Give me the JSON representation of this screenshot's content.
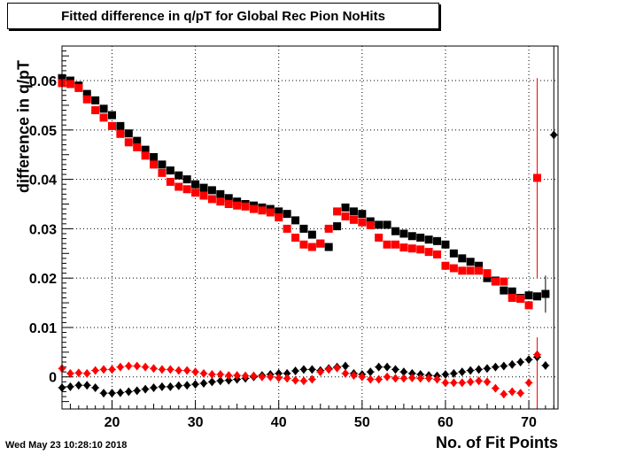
{
  "chart_data": {
    "type": "scatter",
    "title": "Fitted difference in q/pT for Global Rec Pion NoHits",
    "xlabel": "No. of Fit Points",
    "ylabel": "difference in q/pT",
    "xlim": [
      14,
      73.5
    ],
    "ylim": [
      -0.0065,
      0.067
    ],
    "xticks": [
      20,
      30,
      40,
      50,
      60,
      70
    ],
    "yticks": [
      0,
      0.01,
      0.02,
      0.03,
      0.04,
      0.05,
      0.06
    ],
    "ytick_labels": [
      "0",
      "0.01",
      "0.02",
      "0.03",
      "0.04",
      "0.05",
      "0.06"
    ],
    "grid": true,
    "series": [
      {
        "marker": "square",
        "color": "#000000",
        "x": [
          14,
          15,
          16,
          17,
          18,
          19,
          20,
          21,
          22,
          23,
          24,
          25,
          26,
          27,
          28,
          29,
          30,
          31,
          32,
          33,
          34,
          35,
          36,
          37,
          38,
          39,
          40,
          41,
          42,
          43,
          44,
          45,
          46,
          47,
          48,
          49,
          50,
          51,
          52,
          53,
          54,
          55,
          56,
          57,
          58,
          59,
          60,
          61,
          62,
          63,
          64,
          65,
          66,
          67,
          68,
          69,
          70,
          71,
          72
        ],
        "y": [
          0.0605,
          0.06,
          0.059,
          0.0573,
          0.056,
          0.0543,
          0.053,
          0.0508,
          0.0493,
          0.0478,
          0.046,
          0.0445,
          0.043,
          0.0418,
          0.0408,
          0.04,
          0.039,
          0.0383,
          0.0378,
          0.037,
          0.0362,
          0.0355,
          0.035,
          0.0347,
          0.0343,
          0.034,
          0.0335,
          0.033,
          0.0317,
          0.03,
          0.0288,
          0.027,
          0.0263,
          0.0305,
          0.0343,
          0.0335,
          0.033,
          0.0315,
          0.0308,
          0.0308,
          0.0295,
          0.029,
          0.0285,
          0.0282,
          0.0278,
          0.0275,
          0.0268,
          0.025,
          0.024,
          0.0233,
          0.0225,
          0.02,
          0.0195,
          0.0175,
          0.0173,
          0.016,
          0.0165,
          0.0163,
          0.0168
        ]
      },
      {
        "marker": "square",
        "color": "#ff0000",
        "x": [
          14,
          15,
          16,
          17,
          18,
          19,
          20,
          21,
          22,
          23,
          24,
          25,
          26,
          27,
          28,
          29,
          30,
          31,
          32,
          33,
          34,
          35,
          36,
          37,
          38,
          39,
          40,
          41,
          42,
          43,
          44,
          45,
          46,
          47,
          48,
          49,
          50,
          51,
          52,
          53,
          54,
          55,
          56,
          57,
          58,
          59,
          60,
          61,
          62,
          63,
          64,
          65,
          66,
          67,
          68,
          69,
          70,
          71
        ],
        "y": [
          0.0595,
          0.0593,
          0.0585,
          0.0562,
          0.054,
          0.0525,
          0.0508,
          0.0492,
          0.0475,
          0.0465,
          0.0448,
          0.043,
          0.0413,
          0.0395,
          0.0385,
          0.038,
          0.0373,
          0.0367,
          0.036,
          0.0355,
          0.035,
          0.0347,
          0.0345,
          0.034,
          0.0337,
          0.0333,
          0.0323,
          0.03,
          0.0282,
          0.0268,
          0.0263,
          0.027,
          0.03,
          0.0335,
          0.0325,
          0.0318,
          0.0313,
          0.0307,
          0.0282,
          0.0268,
          0.0268,
          0.0262,
          0.026,
          0.0258,
          0.0253,
          0.0248,
          0.0225,
          0.022,
          0.0215,
          0.0215,
          0.0215,
          0.021,
          0.0193,
          0.0193,
          0.016,
          0.0158,
          0.0145,
          0.0403
        ]
      },
      {
        "marker": "diamond",
        "color": "#000000",
        "x": [
          14,
          15,
          16,
          17,
          18,
          19,
          20,
          21,
          22,
          23,
          24,
          25,
          26,
          27,
          28,
          29,
          30,
          31,
          32,
          33,
          34,
          35,
          36,
          37,
          38,
          39,
          40,
          41,
          42,
          43,
          44,
          45,
          46,
          47,
          48,
          49,
          50,
          51,
          52,
          53,
          54,
          55,
          56,
          57,
          58,
          59,
          60,
          61,
          62,
          63,
          64,
          65,
          66,
          67,
          68,
          69,
          70,
          71,
          72,
          73
        ],
        "y": [
          -0.0022,
          -0.002,
          -0.0017,
          -0.0017,
          -0.0022,
          -0.0033,
          -0.0033,
          -0.0032,
          -0.003,
          -0.0028,
          -0.0025,
          -0.0022,
          -0.002,
          -0.002,
          -0.0018,
          -0.0017,
          -0.0015,
          -0.0013,
          -0.001,
          -0.0008,
          -0.0007,
          -0.0005,
          -0.0003,
          0.0,
          0.0003,
          0.0005,
          0.0007,
          0.0007,
          0.0012,
          0.0015,
          0.0015,
          0.0013,
          0.0017,
          0.002,
          0.0022,
          0.0007,
          0.0005,
          0.001,
          0.002,
          0.002,
          0.0015,
          0.001,
          0.0007,
          0.0005,
          0.0003,
          0.0002,
          0.0005,
          0.0007,
          0.001,
          0.0013,
          0.0015,
          0.0017,
          0.002,
          0.0022,
          0.0025,
          0.003,
          0.0035,
          0.004,
          0.0023,
          0.049
        ]
      },
      {
        "marker": "diamond",
        "color": "#ff0000",
        "x": [
          14,
          15,
          16,
          17,
          18,
          19,
          20,
          21,
          22,
          23,
          24,
          25,
          26,
          27,
          28,
          29,
          30,
          31,
          32,
          33,
          34,
          35,
          36,
          37,
          38,
          39,
          40,
          41,
          42,
          43,
          44,
          45,
          46,
          47,
          48,
          49,
          50,
          51,
          52,
          53,
          54,
          55,
          56,
          57,
          58,
          59,
          60,
          61,
          62,
          63,
          64,
          65,
          66,
          67,
          68,
          69,
          70,
          71
        ],
        "y": [
          0.0017,
          0.0007,
          0.0008,
          0.0007,
          0.0013,
          0.0015,
          0.0015,
          0.002,
          0.0022,
          0.0022,
          0.002,
          0.0017,
          0.0015,
          0.0015,
          0.0013,
          0.0013,
          0.001,
          0.0007,
          0.0005,
          0.0005,
          0.0003,
          0.0003,
          0.0002,
          0.0002,
          0.0,
          0.0,
          -0.0002,
          -0.0003,
          -0.0007,
          -0.0008,
          -0.0005,
          0.001,
          0.0015,
          0.0018,
          0.0007,
          0.0003,
          0.0,
          -0.0005,
          -0.0005,
          0.0,
          -0.0003,
          -0.0003,
          -0.0002,
          -0.0003,
          -0.0003,
          -0.0005,
          -0.0012,
          -0.0012,
          -0.0012,
          -0.001,
          -0.0008,
          -0.001,
          -0.0023,
          -0.0035,
          -0.003,
          -0.0033,
          -0.0012,
          0.0045
        ]
      }
    ],
    "error_bars": [
      {
        "x": 71,
        "y_low": 0.02,
        "y_high": 0.0605,
        "color": "#ff0000"
      },
      {
        "x": 71,
        "y_low": -0.008,
        "y_high": 0.008,
        "color": "#ff0000"
      },
      {
        "x": 72,
        "y_low": 0.013,
        "y_high": 0.0205,
        "color": "#000000"
      },
      {
        "x": 73,
        "y_low": -0.008,
        "y_high": 0.067,
        "color": "#000000"
      }
    ]
  },
  "footer": {
    "timestamp": "Wed May 23 10:28:10 2018"
  }
}
